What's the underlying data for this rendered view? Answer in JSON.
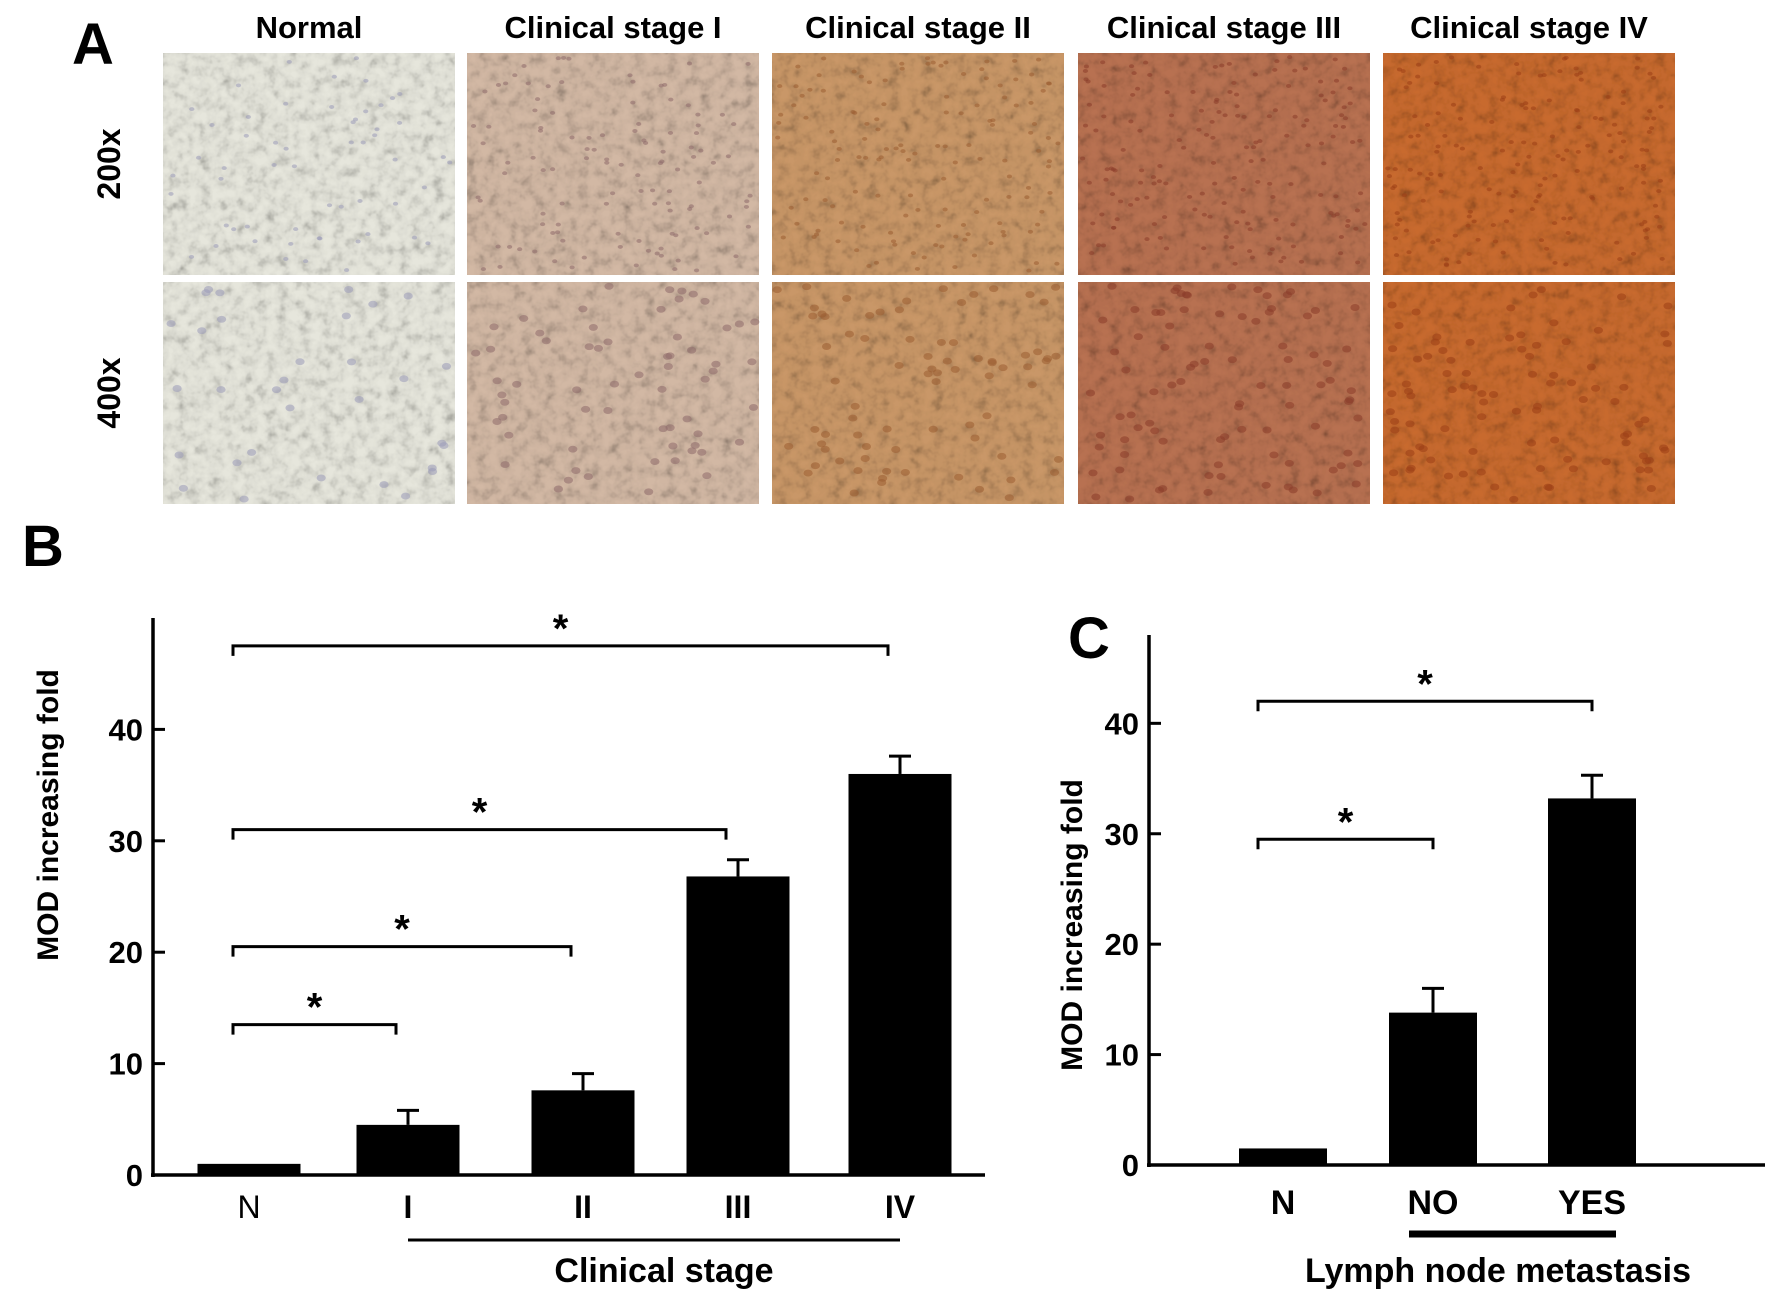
{
  "panel_a": {
    "letter": "A",
    "column_labels": [
      "Normal",
      "Clinical stage I",
      "Clinical stage II",
      "Clinical stage III",
      "Clinical stage IV"
    ],
    "row_labels": [
      "200x",
      "400x"
    ],
    "column_stain_colors": [
      "#e6e6dc",
      "#d2b8a4",
      "#c99767",
      "#b87151",
      "#c86a2e"
    ]
  },
  "chart_data": [
    {
      "type": "bar",
      "panel_letter": "B",
      "categories": [
        "N",
        "I",
        "II",
        "III",
        "IV"
      ],
      "values": [
        1,
        4.5,
        7.6,
        26.8,
        36
      ],
      "error_bars": [
        0,
        1.3,
        1.5,
        1.5,
        1.6
      ],
      "ylabel": "MOD increasing fold",
      "xlabel": "Clinical stage",
      "ylim": [
        0,
        50
      ],
      "yticks": [
        0,
        10,
        20,
        30,
        40
      ],
      "grid": false,
      "bar_color": "#000000",
      "significance": [
        {
          "from": "N",
          "to": "I",
          "y": 13.5,
          "mark": "*"
        },
        {
          "from": "N",
          "to": "II",
          "y": 20.5,
          "mark": "*"
        },
        {
          "from": "N",
          "to": "III",
          "y": 31,
          "mark": "*"
        },
        {
          "from": "N",
          "to": "IV",
          "y": 47.5,
          "mark": "*"
        }
      ],
      "group_underline": {
        "from": "I",
        "to": "IV"
      }
    },
    {
      "type": "bar",
      "panel_letter": "C",
      "categories": [
        "N",
        "NO",
        "YES"
      ],
      "values": [
        1.5,
        13.8,
        33.2
      ],
      "error_bars": [
        0,
        2.2,
        2.1
      ],
      "ylabel": "MOD increasing fold",
      "xlabel": "Lymph node metastasis",
      "ylim": [
        0,
        48
      ],
      "yticks": [
        0,
        10,
        20,
        30,
        40
      ],
      "grid": false,
      "bar_color": "#000000",
      "significance": [
        {
          "from": "N",
          "to": "NO",
          "y": 29.5,
          "mark": "*"
        },
        {
          "from": "N",
          "to": "YES",
          "y": 42,
          "mark": "*"
        }
      ],
      "group_underline": {
        "from": "NO",
        "to": "YES"
      }
    }
  ]
}
